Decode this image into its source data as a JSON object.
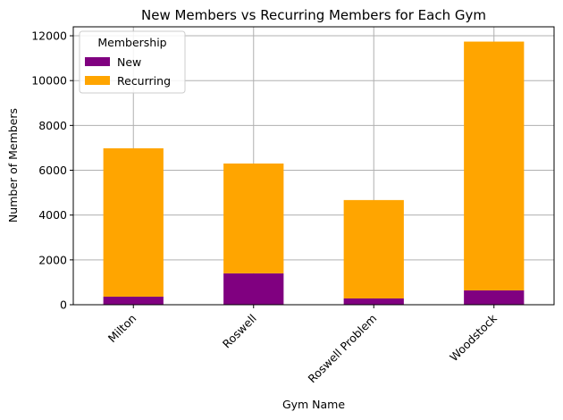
{
  "chart_data": {
    "type": "bar",
    "stacked": true,
    "title": "New Members vs Recurring Members for Each Gym",
    "xlabel": "Gym Name",
    "ylabel": "Number of Members",
    "categories": [
      "Milton",
      "Roswell",
      "Roswell Problem",
      "Woodstock"
    ],
    "series": [
      {
        "name": "New",
        "values": [
          360,
          1400,
          280,
          640
        ],
        "color": "#800080"
      },
      {
        "name": "Recurring",
        "values": [
          6620,
          4900,
          4390,
          11100
        ],
        "color": "#FFA500"
      }
    ],
    "ylim": [
      0,
      12400
    ],
    "yticks": [
      0,
      2000,
      4000,
      6000,
      8000,
      10000,
      12000
    ],
    "grid": true,
    "legend": {
      "title": "Membership",
      "placement": "top-left"
    }
  }
}
